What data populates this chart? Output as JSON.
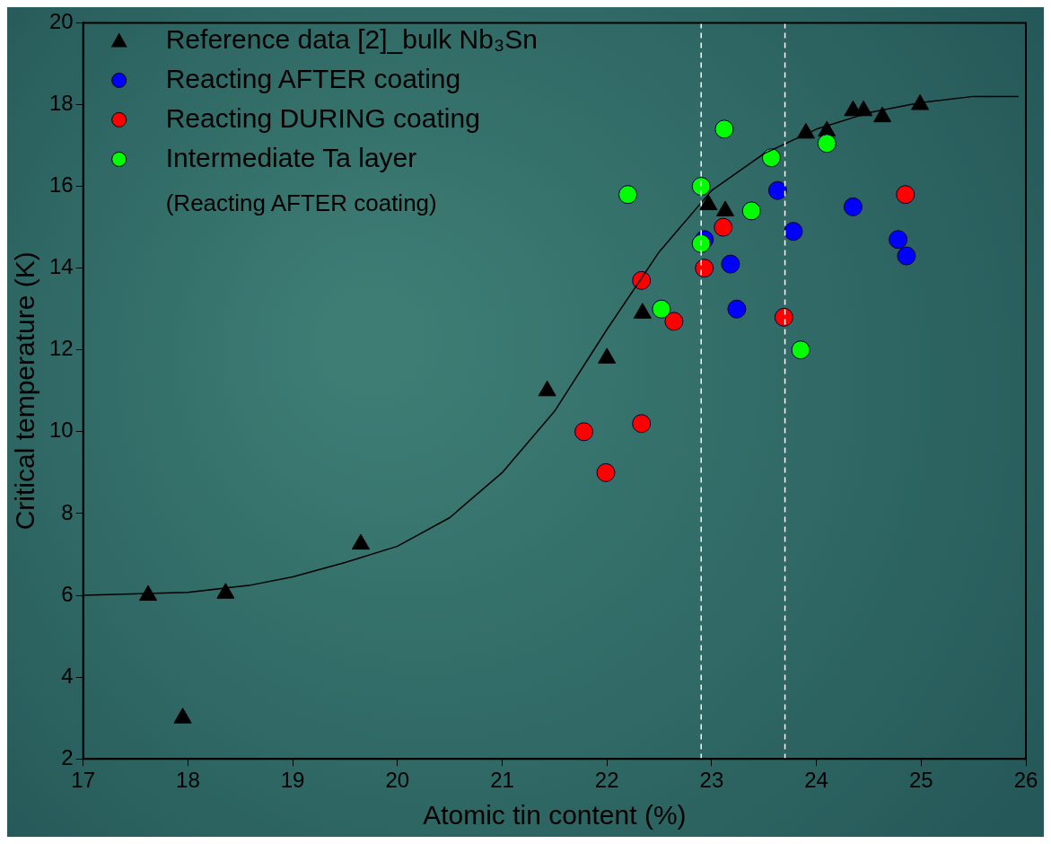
{
  "chart_data": {
    "type": "scatter",
    "xlabel": "Atomic tin content (%)",
    "ylabel": "Critical temperature (K)",
    "xlim": [
      17,
      26
    ],
    "xticks": [
      17,
      18,
      19,
      20,
      21,
      22,
      23,
      24,
      25,
      26
    ],
    "ylim": [
      2,
      20
    ],
    "yticks": [
      2,
      4,
      6,
      8,
      10,
      12,
      14,
      16,
      18,
      20
    ],
    "grid": false,
    "legend": "top left",
    "series": [
      {
        "name": "Reference data [2]_bulk Nb₃Sn",
        "type": "scatter",
        "marker": "triangle",
        "color": "#000000",
        "x": [
          17.62,
          17.95,
          18.36,
          19.65,
          21.43,
          22.0,
          22.34,
          22.97,
          23.13,
          23.9,
          24.1,
          24.35,
          24.45,
          24.63,
          24.99
        ],
        "values": [
          6.0,
          3.0,
          6.05,
          7.25,
          11.0,
          11.8,
          12.9,
          15.55,
          15.4,
          17.3,
          17.35,
          17.85,
          17.85,
          17.7,
          18.0
        ]
      },
      {
        "name": "Reacting AFTER coating",
        "type": "scatter",
        "marker": "circle",
        "color": "#0000ff",
        "x": [
          22.93,
          23.18,
          23.24,
          23.63,
          23.78,
          24.35,
          24.78,
          24.86
        ],
        "values": [
          14.7,
          14.1,
          13.0,
          15.9,
          14.9,
          15.5,
          14.7,
          14.3
        ]
      },
      {
        "name": "Reacting DURING coating",
        "type": "scatter",
        "marker": "circle",
        "color": "#ff0000",
        "x": [
          21.78,
          21.99,
          22.33,
          22.33,
          22.64,
          22.93,
          23.11,
          23.69,
          24.85
        ],
        "values": [
          10.0,
          9.0,
          10.2,
          13.7,
          12.7,
          14.0,
          15.0,
          12.8,
          15.8
        ]
      },
      {
        "name": "Intermediate Ta layer",
        "type": "scatter",
        "marker": "circle",
        "color": "#00ff00",
        "x": [
          22.2,
          22.52,
          22.9,
          22.9,
          23.12,
          23.38,
          23.57,
          23.85,
          24.1
        ],
        "values": [
          15.8,
          13.0,
          16.0,
          14.6,
          17.4,
          15.4,
          16.7,
          12.0,
          17.05
        ]
      },
      {
        "type": "line",
        "marker": "none",
        "line_style": "solid",
        "color": "#000000",
        "x": [
          17.0,
          18.0,
          18.6,
          19.0,
          19.5,
          20.0,
          20.5,
          21.0,
          21.5,
          22.0,
          22.5,
          23.0,
          23.5,
          24.0,
          24.5,
          25.0,
          25.5,
          25.93
        ],
        "values": [
          6.0,
          6.07,
          6.25,
          6.45,
          6.8,
          7.2,
          7.9,
          9.0,
          10.5,
          12.5,
          14.4,
          15.9,
          16.8,
          17.4,
          17.8,
          18.05,
          18.2,
          18.2
        ]
      }
    ],
    "ref_lines": [
      {
        "axis": "x",
        "value": 22.9,
        "color": "#ffffff",
        "line_style": "dashed"
      },
      {
        "axis": "x",
        "value": 23.7,
        "color": "#ffffff",
        "line_style": "dashed"
      }
    ],
    "annotations": [
      "(Reacting AFTER coating)"
    ]
  }
}
